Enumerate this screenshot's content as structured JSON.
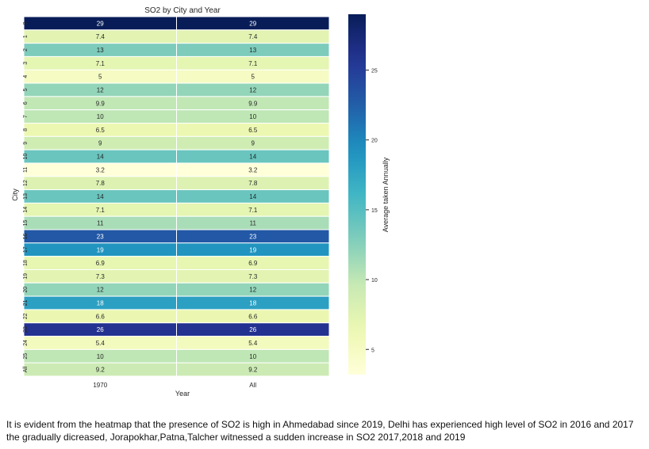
{
  "chart_data": {
    "type": "heatmap",
    "title": "SO2 by City and Year",
    "xlabel": "Year",
    "ylabel": "City",
    "colorbar_label": "Average taken Annually",
    "colormap": "YlGnBu",
    "x_categories": [
      "1970",
      "All"
    ],
    "y_categories": [
      "0",
      "1",
      "2",
      "3",
      "4",
      "5",
      "6",
      "7",
      "8",
      "9",
      "10",
      "11",
      "12",
      "13",
      "14",
      "15",
      "16",
      "17",
      "18",
      "19",
      "20",
      "21",
      "22",
      "23",
      "24",
      "25",
      "All"
    ],
    "values": [
      [
        29,
        29
      ],
      [
        7.4,
        7.4
      ],
      [
        13,
        13
      ],
      [
        7.1,
        7.1
      ],
      [
        5,
        5
      ],
      [
        12,
        12
      ],
      [
        9.9,
        9.9
      ],
      [
        10,
        10
      ],
      [
        6.5,
        6.5
      ],
      [
        9,
        9
      ],
      [
        14,
        14
      ],
      [
        3.2,
        3.2
      ],
      [
        7.8,
        7.8
      ],
      [
        14,
        14
      ],
      [
        7.1,
        7.1
      ],
      [
        11,
        11
      ],
      [
        23,
        23
      ],
      [
        19,
        19
      ],
      [
        6.9,
        6.9
      ],
      [
        7.3,
        7.3
      ],
      [
        12,
        12
      ],
      [
        18,
        18
      ],
      [
        6.6,
        6.6
      ],
      [
        26,
        26
      ],
      [
        5.4,
        5.4
      ],
      [
        10,
        10
      ],
      [
        9.2,
        9.2
      ]
    ],
    "color_range": [
      3.2,
      29
    ],
    "colorbar_ticks": [
      5,
      10,
      15,
      20,
      25
    ]
  },
  "caption": "It is evident from the heatmap that the presence of SO2 is high in Ahmedabad since 2019, Delhi has experienced high level of SO2 in 2016 and 2017 the gradually dicreased, Jorapokhar,Patna,Talcher witnessed a sudden increase in SO2 2017,2018 and 2019"
}
